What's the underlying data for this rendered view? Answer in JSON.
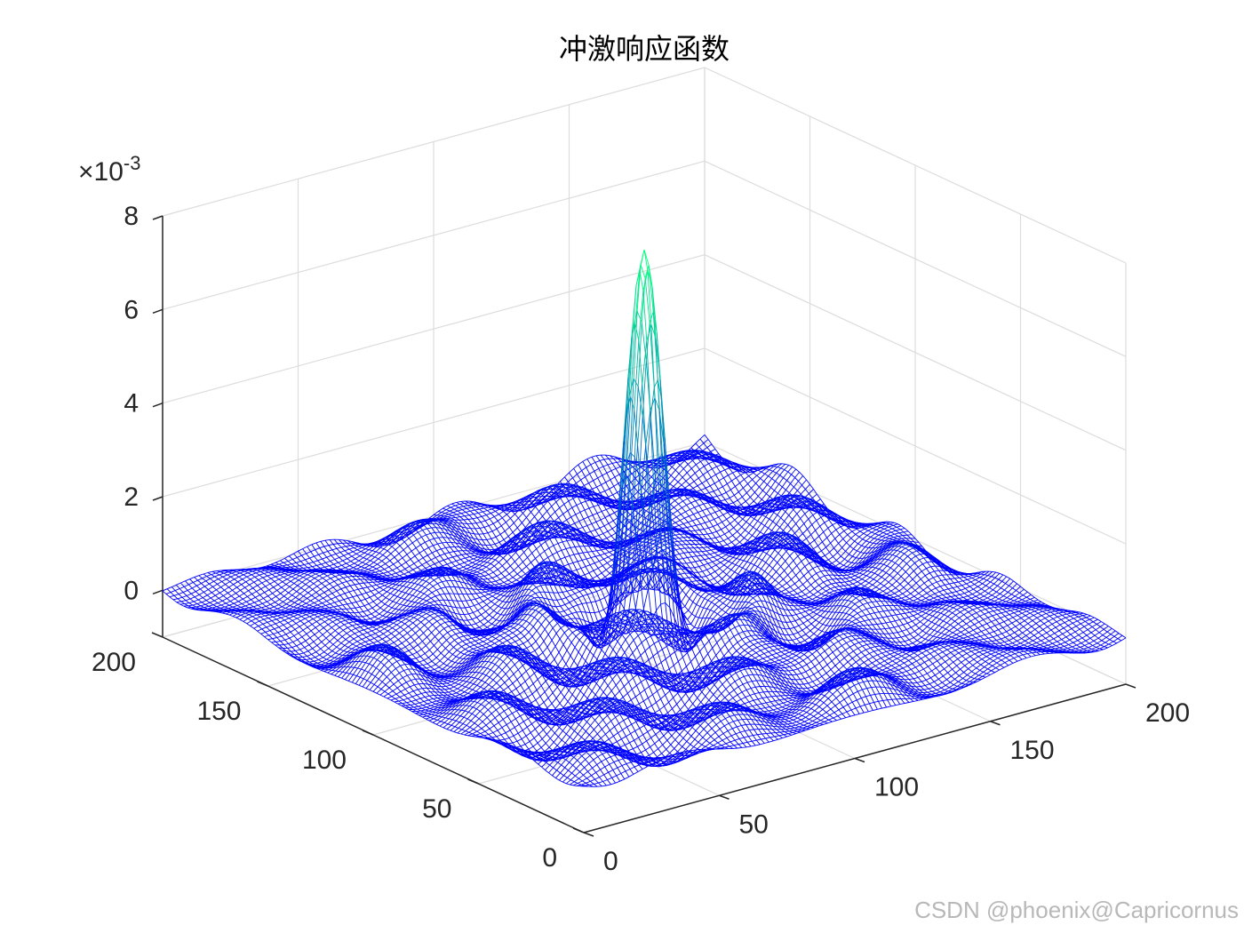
{
  "chart_data": {
    "type": "surface",
    "title": "冲激响应函数",
    "z_exponent_label": "×10-3",
    "z_multiplier": "×10",
    "z_exponent": "-3",
    "x_ticks": [
      "0",
      "50",
      "100",
      "150",
      "200"
    ],
    "y_ticks": [
      "0",
      "50",
      "100",
      "150",
      "200"
    ],
    "z_ticks": [
      "0",
      "2",
      "4",
      "6",
      "8"
    ],
    "xlim": [
      0,
      200
    ],
    "ylim": [
      0,
      200
    ],
    "zlim": [
      -0.001,
      0.008
    ],
    "grid": true,
    "colormap": "winter",
    "peak": {
      "x": 100,
      "y": 100,
      "z": 0.0074
    },
    "surface_function": "z ≈ 0.0074 · sinc-like radial ripple around (100,100)",
    "colors": {
      "low": "#0000ff",
      "high": "#00ff80",
      "axis": "#262626",
      "grid": "#dcdcdc"
    }
  },
  "watermark": "CSDN @phoenix@Capricornus"
}
